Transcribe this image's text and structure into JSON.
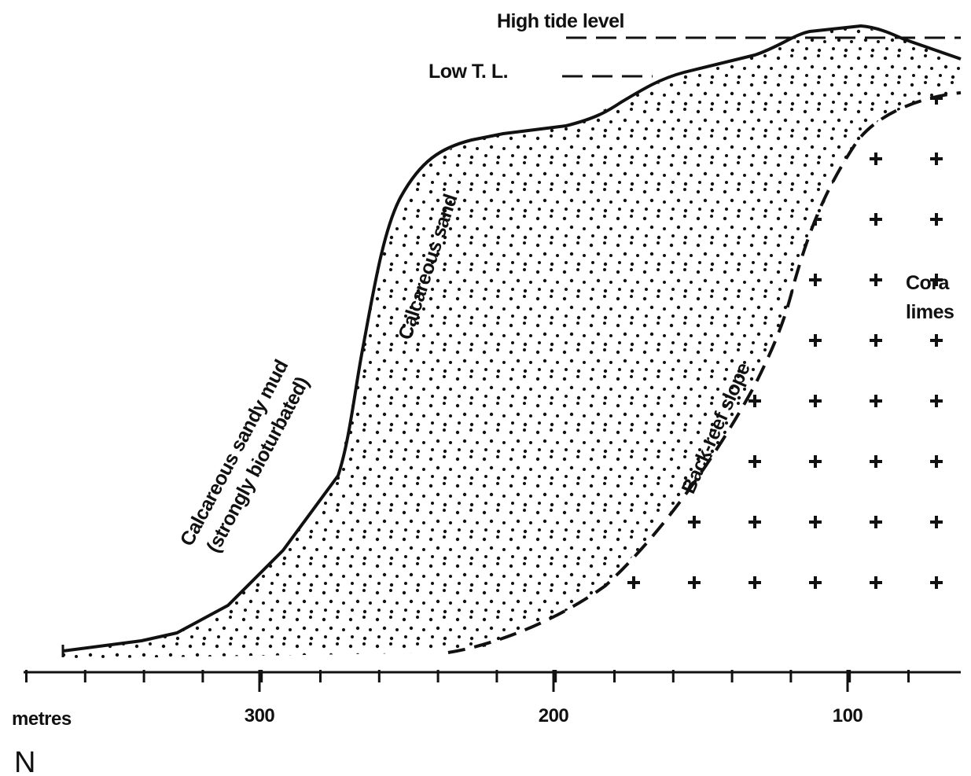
{
  "labels": {
    "high_tide": "High tide level",
    "low_tide": "Low T. L.",
    "mud_line1": "Calcareous sandy mud",
    "mud_line2": "(strongly bioturbated)",
    "sand": "Calcareous sand",
    "slope": "Back-reef slope",
    "coral_line1": "Cora",
    "coral_line2": "limes"
  },
  "axis": {
    "label": "metres",
    "ticks": [
      300,
      200,
      100
    ]
  },
  "north": "N"
}
